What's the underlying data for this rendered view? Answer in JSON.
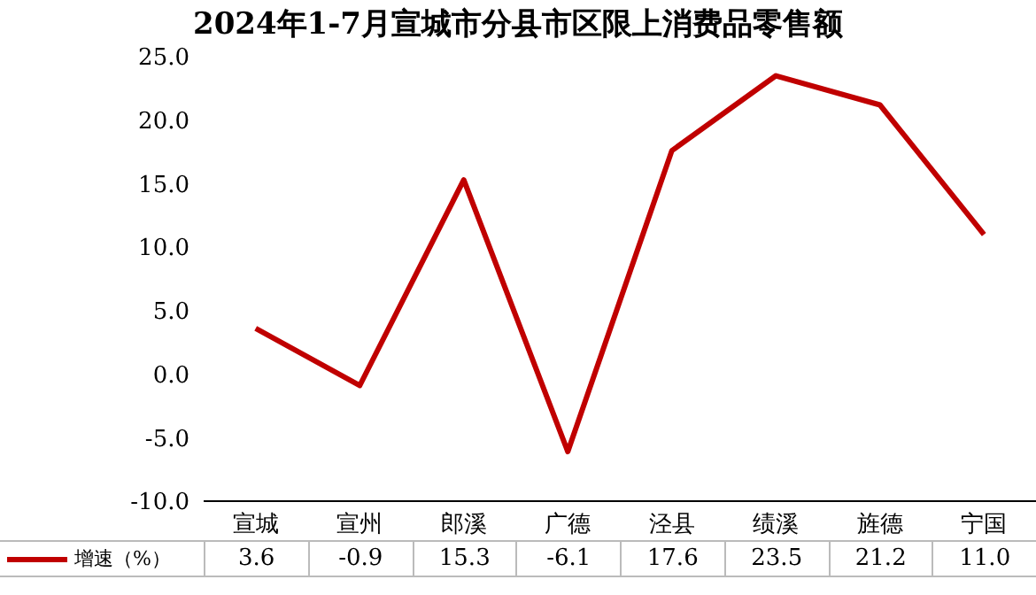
{
  "chart_data": {
    "type": "line",
    "title": "2024年1-7月宣城市分县市区限上消费品零售额",
    "categories": [
      "宣城",
      "宣州",
      "郎溪",
      "广德",
      "泾县",
      "绩溪",
      "旌德",
      "宁国"
    ],
    "series": [
      {
        "name": "增速（%）",
        "color": "#c00000",
        "values": [
          3.6,
          -0.9,
          15.3,
          -6.1,
          17.6,
          23.5,
          21.2,
          11.0
        ],
        "value_labels": [
          "3.6",
          "-0.9",
          "15.3",
          "-6.1",
          "17.6",
          "23.5",
          "21.2",
          "11.0"
        ]
      }
    ],
    "ylim": [
      -10,
      25
    ],
    "yticks": [
      {
        "value": -10,
        "label": "-10.0"
      },
      {
        "value": -5,
        "label": "-5.0"
      },
      {
        "value": 0,
        "label": "0.0"
      },
      {
        "value": 5,
        "label": "5.0"
      },
      {
        "value": 10,
        "label": "10.0"
      },
      {
        "value": 15,
        "label": "15.0"
      },
      {
        "value": 20,
        "label": "20.0"
      },
      {
        "value": 25,
        "label": "25.0"
      }
    ],
    "grid": false,
    "marker": "none",
    "line_style": "solid",
    "legend": "bottom left"
  }
}
